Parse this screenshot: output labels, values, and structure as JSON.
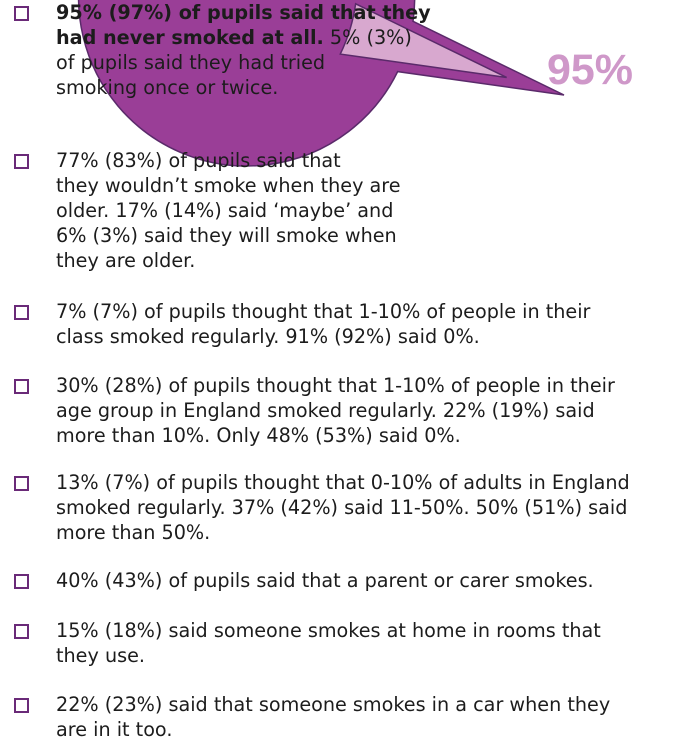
{
  "chart_data": {
    "type": "pie",
    "slices": [
      {
        "label": "95%",
        "value": 95,
        "color": "#9a3e97"
      },
      {
        "label": "",
        "value": 5,
        "color": "#d8a8cf"
      }
    ],
    "exploded_slice_index": 1,
    "colors": {
      "main": "#9a3e97",
      "minor": "#d8a8cf",
      "label": "#cf98c9",
      "edge": "#5a2a6a"
    }
  },
  "bullets": [
    {
      "bold": "95% (97%) of pupils said that they",
      "rest": ""
    },
    {
      "bold": "had never smoked at all.",
      "rest": " 5% (3%)"
    },
    {
      "plain": "of pupils said they had tried"
    },
    {
      "plain": "smoking once or twice."
    },
    {
      "plain": "77% (83%) of pupils said that"
    },
    {
      "plain": "they wouldn’t smoke when they are"
    },
    {
      "plain": "older. 17% (14%) said ‘maybe’ and"
    },
    {
      "plain": "6% (3%) said they will smoke when"
    },
    {
      "plain": "they are older."
    },
    {
      "plain": "7% (7%) of pupils thought that 1-10% of people in their"
    },
    {
      "plain": "class smoked regularly. 91% (92%) said 0%."
    },
    {
      "plain": "30% (28%) of pupils thought that 1-10% of people in their"
    },
    {
      "plain": "age group in England smoked regularly. 22% (19%) said"
    },
    {
      "plain": "more than 10%. Only 48% (53%) said 0%."
    },
    {
      "plain": "13% (7%) of pupils thought that 0-10% of adults in England"
    },
    {
      "plain": "smoked regularly. 37% (42%) said 11-50%. 50% (51%) said"
    },
    {
      "plain": "more than 50%."
    },
    {
      "plain": "40% (43%) of pupils said that a parent or carer smokes."
    },
    {
      "plain": "15% (18%) said someone smokes at home in rooms that"
    },
    {
      "plain": "they use."
    },
    {
      "plain": "22% (23%) said that someone smokes in a car when they"
    },
    {
      "plain": "are in it too."
    }
  ]
}
